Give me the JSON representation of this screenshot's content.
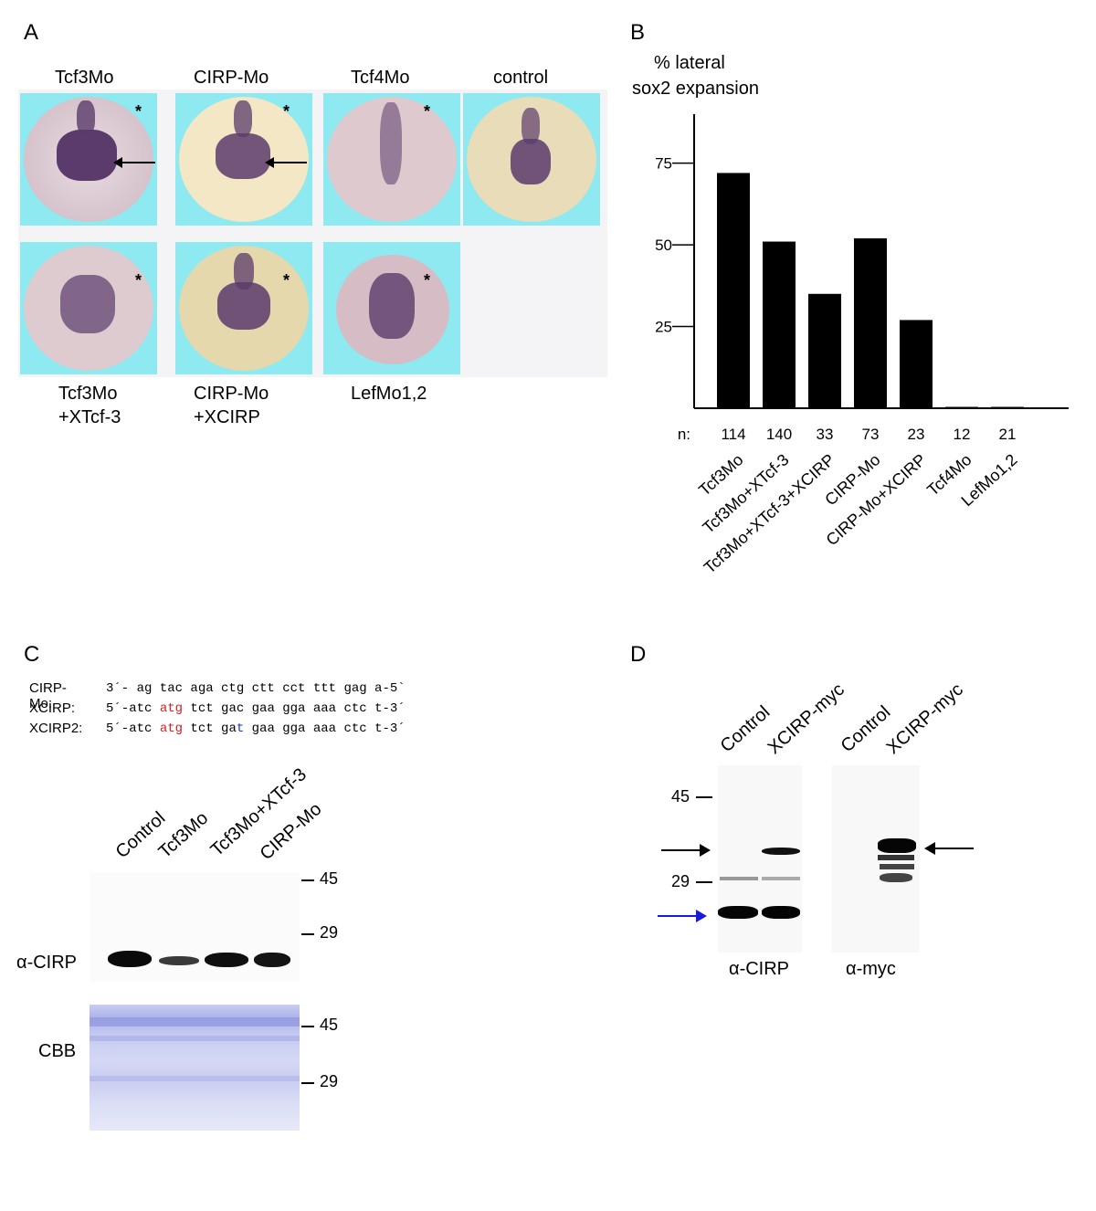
{
  "panels": {
    "a": "A",
    "b": "B",
    "c": "C",
    "d": "D"
  },
  "panel_a": {
    "top_labels": [
      "Tcf3Mo",
      "CIRP-Mo",
      "Tcf4Mo",
      "control"
    ],
    "bottom_labels": [
      {
        "line1": "Tcf3Mo",
        "line2": "+XTcf-3"
      },
      {
        "line1": "CIRP-Mo",
        "line2": "+XCIRP"
      },
      {
        "line1": "LefMo1,2",
        "line2": ""
      }
    ],
    "star": "*"
  },
  "chart_data": {
    "type": "bar",
    "title_line1": "% lateral",
    "title_line2": "sox2 expansion",
    "categories": [
      "Tcf3Mo",
      "Tcf3Mo+XTcf-3",
      "Tcf3Mo+XTcf-3+XCIRP",
      "CIRP-Mo",
      "CIRP-Mo+XCIRP",
      "Tcf4Mo",
      "LefMo1,2"
    ],
    "values": [
      72,
      51,
      35,
      52,
      27,
      0,
      0
    ],
    "n_label": "n:",
    "n_values": [
      "114",
      "140",
      "33",
      "73",
      "23",
      "12",
      "21"
    ],
    "yticks": [
      "25",
      "50",
      "75"
    ],
    "ylim": [
      0,
      90
    ],
    "bar_color": "#000000"
  },
  "panel_c": {
    "seq_rows": [
      {
        "label": "CIRP-Mo:",
        "parts": [
          {
            "t": "3´- ag tac aga ctg ctt cct ttt gag a-5`",
            "c": "#000000"
          }
        ]
      },
      {
        "label": "XCIRP:",
        "parts": [
          {
            "t": "5´-atc ",
            "c": "#000000"
          },
          {
            "t": "atg",
            "c": "#d42020"
          },
          {
            "t": " tct gac gaa gga aaa ctc t-3´",
            "c": "#000000"
          }
        ]
      },
      {
        "label": "XCIRP2:",
        "parts": [
          {
            "t": "5´-atc ",
            "c": "#000000"
          },
          {
            "t": "atg",
            "c": "#d42020"
          },
          {
            "t": " tct ga",
            "c": "#000000"
          },
          {
            "t": "t",
            "c": "#2233cc"
          },
          {
            "t": " gaa gga aaa ctc t-3´",
            "c": "#000000"
          }
        ]
      }
    ],
    "lanes": [
      "Control",
      "Tcf3Mo",
      "Tcf3Mo+XTcf-3",
      "CIRP-Mo"
    ],
    "blot_label": "α-CIRP",
    "stain_label": "CBB",
    "mw_blot": [
      "45",
      "29"
    ],
    "mw_stain": [
      "45",
      "29"
    ]
  },
  "panel_d": {
    "lanes_left": [
      "Control",
      "XCIRP-myc"
    ],
    "lanes_right": [
      "Control",
      "XCIRP-myc"
    ],
    "mw": [
      "45",
      "29"
    ],
    "label_left": "α-CIRP",
    "label_right": "α-myc",
    "arrow_black": "#000000",
    "arrow_blue": "#1a1adc"
  }
}
